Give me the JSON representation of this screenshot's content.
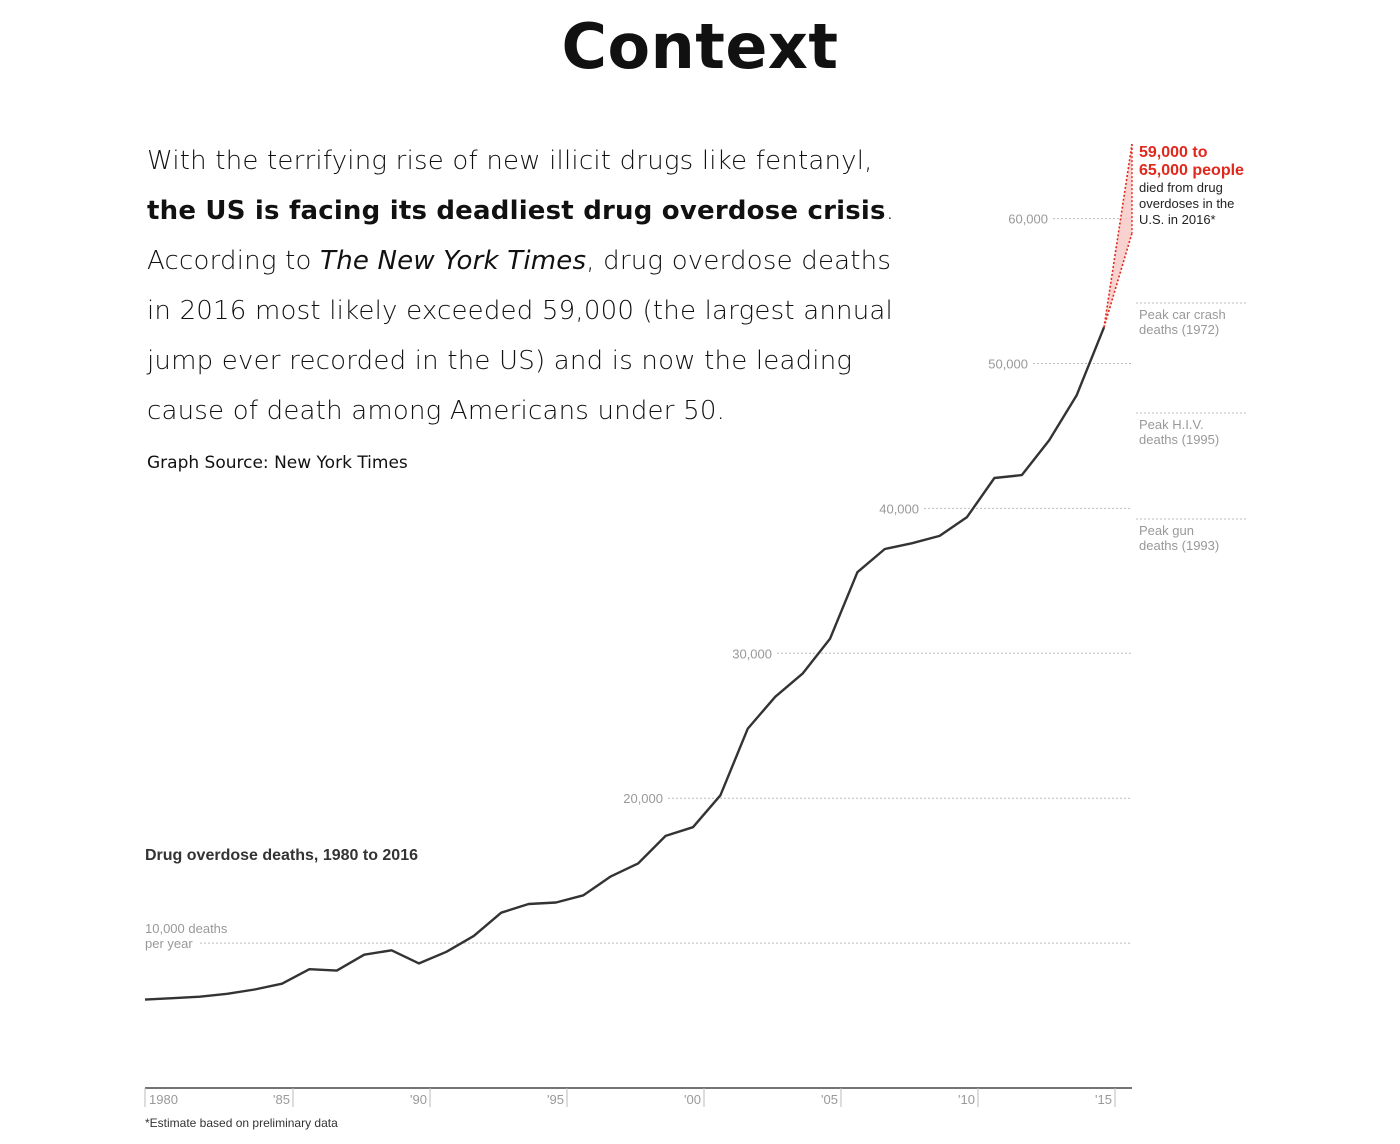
{
  "page": {
    "title": "Context",
    "intro": {
      "p1": "With the terrifying rise of new illicit drugs like fentanyl, ",
      "bold": "the US is facing its deadliest drug overdose crisis",
      "p2": ". According to ",
      "italic": "The New York Times",
      "p3": ", drug overdose deaths in 2016 most likely exceeded 59,000 (the largest annual jump ever recorded in the US) and is now the leading cause of death among Americans under 50."
    },
    "source": "Graph Source: New York Times"
  },
  "colors": {
    "line": "#333333",
    "estimate": "#e0281d",
    "estimate_fill": "#f7c7c4",
    "grid": "#bbbbbb",
    "muted": "#999999"
  },
  "chart_data": {
    "type": "line",
    "title": "Drug overdose deaths, 1980 to 2016",
    "footnote": "*Estimate based on preliminary data",
    "xlim": [
      1980,
      2016
    ],
    "ylim": [
      0,
      65000
    ],
    "x_ticks": [
      {
        "value": 1980,
        "label": "1980"
      },
      {
        "value": 1985,
        "label": "'85"
      },
      {
        "value": 1990,
        "label": "'90"
      },
      {
        "value": 1995,
        "label": "'95"
      },
      {
        "value": 2000,
        "label": "'00"
      },
      {
        "value": 2005,
        "label": "'05"
      },
      {
        "value": 2010,
        "label": "'10"
      },
      {
        "value": 2015,
        "label": "'15"
      }
    ],
    "y_gridlines": [
      {
        "value": 10000,
        "label": "10,000 deaths",
        "label2": "per year"
      },
      {
        "value": 20000,
        "label": "20,000"
      },
      {
        "value": 30000,
        "label": "30,000"
      },
      {
        "value": 40000,
        "label": "40,000"
      },
      {
        "value": 50000,
        "label": "50,000"
      },
      {
        "value": 60000,
        "label": "60,000"
      }
    ],
    "series": [
      {
        "x": [
          1980,
          1981,
          1982,
          1983,
          1984,
          1985,
          1986,
          1987,
          1988,
          1989,
          1990,
          1991,
          1992,
          1993,
          1994,
          1995,
          1996,
          1997,
          1998,
          1999,
          2000,
          2001,
          2002,
          2003,
          2004,
          2005,
          2006,
          2007,
          2008,
          2009,
          2010,
          2011,
          2012,
          2013,
          2014,
          2015
        ],
        "values": [
          6100,
          6200,
          6300,
          6500,
          6800,
          7200,
          8200,
          8100,
          9200,
          9500,
          8600,
          9400,
          10500,
          12100,
          12700,
          12800,
          13300,
          14600,
          15500,
          17400,
          18000,
          20200,
          24800,
          27000,
          28600,
          31000,
          35600,
          37200,
          37600,
          38100,
          39400,
          42100,
          42300,
          44700,
          47800,
          52500
        ]
      }
    ],
    "estimate": {
      "year": 2016,
      "low": 59000,
      "high": 65000,
      "label_line1": "59,000 to",
      "label_line2": "65,000 people",
      "desc": [
        "died from drug",
        "overdoses in the",
        "U.S. in 2016*"
      ]
    },
    "reference_lines": [
      {
        "value": 44500,
        "label": [
          "Peak H.I.V.",
          "deaths (1995)"
        ]
      },
      {
        "value": 52300,
        "label": [
          "Peak car crash",
          "deaths (1972)"
        ]
      },
      {
        "value": 39700,
        "label": [
          "Peak gun",
          "deaths (1993)"
        ]
      }
    ]
  }
}
